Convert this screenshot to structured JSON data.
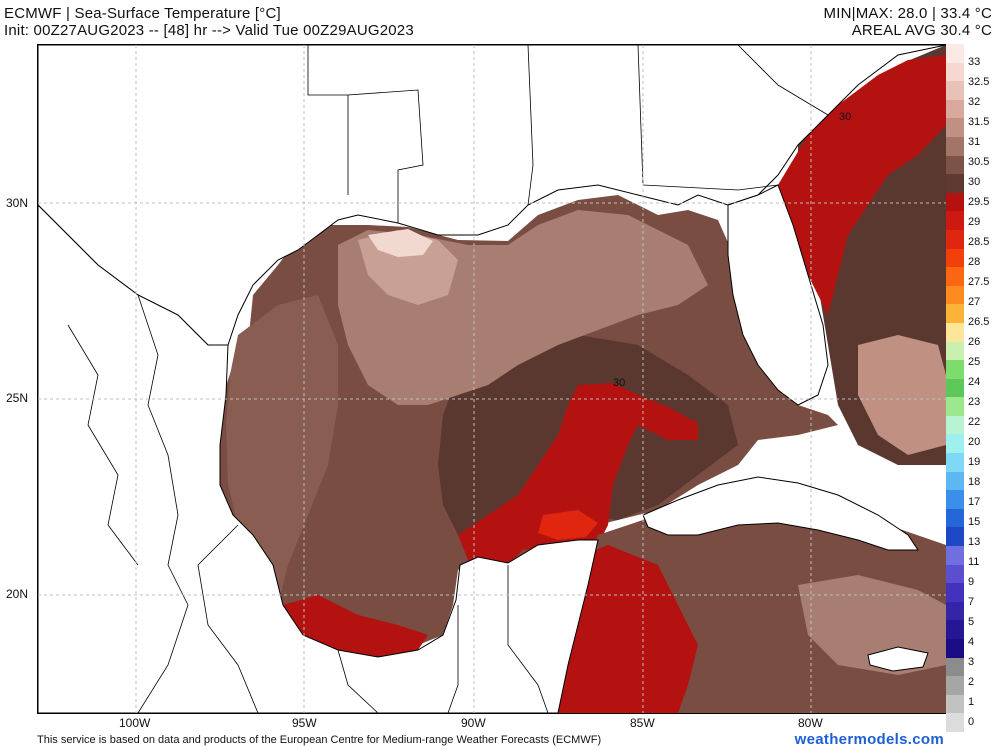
{
  "header": {
    "title": "ECMWF | Sea-Surface Temperature [°C]",
    "subtitle": "Init: 00Z27AUG2023 -- [48] hr --> Valid Tue 00Z29AUG2023",
    "minmax": "MIN|MAX: 28.0 | 33.4 °C",
    "areal_avg": "AREAL AVG 30.4 °C"
  },
  "map": {
    "latitude_labels": [
      "30N",
      "25N",
      "20N"
    ],
    "longitude_labels": [
      "100W",
      "95W",
      "90W",
      "85W",
      "80W"
    ],
    "contour_labels": [
      "30",
      "30"
    ]
  },
  "colorbar": {
    "labels": [
      "33",
      "32.5",
      "32",
      "31.5",
      "31",
      "30.5",
      "30",
      "29.5",
      "29",
      "28.5",
      "28",
      "27.5",
      "27",
      "26.5",
      "26",
      "25",
      "24",
      "23",
      "22",
      "20",
      "19",
      "18",
      "17",
      "15",
      "13",
      "11",
      "9",
      "7",
      "5",
      "4",
      "3",
      "2",
      "1",
      "0"
    ],
    "colors": [
      "#fbe9e4",
      "#f5d8d0",
      "#e9c2b7",
      "#d8a99c",
      "#c09083",
      "#a37468",
      "#7d5247",
      "#5e3a31",
      "#b3120f",
      "#cc1a12",
      "#e0260e",
      "#f2400c",
      "#fb6612",
      "#fd8a1e",
      "#fdb238",
      "#fde69a",
      "#c9f0b0",
      "#7ddc6c",
      "#5cc85a",
      "#9de88f",
      "#b8f3d2",
      "#9ef0f0",
      "#7fd8f5",
      "#5cb8f0",
      "#3a8fe8",
      "#2566d8",
      "#1f48c6",
      "#6f6fe0",
      "#5c4fcf",
      "#4332bd",
      "#3324a8",
      "#251696",
      "#1a0c82",
      "#8c8c8c",
      "#a6a6a6",
      "#c2c2c2",
      "#dcdcdc"
    ]
  },
  "footer": {
    "credit": "This service is based on data and products of the European Centre for Medium-range Weather Forecasts (ECMWF)",
    "brand": "weathermodels.com"
  }
}
